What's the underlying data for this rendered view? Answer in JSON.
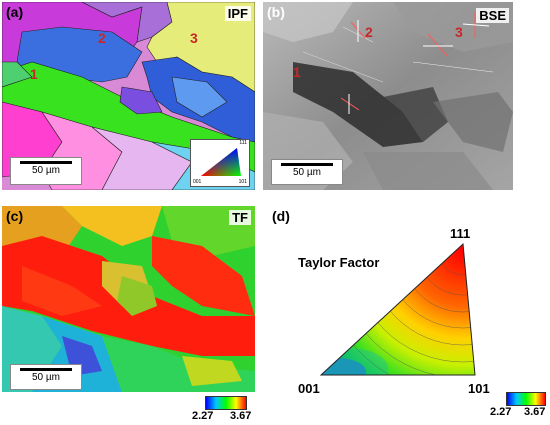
{
  "panels": {
    "a": {
      "tag": "(a)",
      "corner_label": "IPF",
      "scalebar": "50 µm",
      "grains": [
        "1",
        "2",
        "3"
      ],
      "legend_corners": [
        "111",
        "001",
        "101"
      ]
    },
    "b": {
      "tag": "(b)",
      "corner_label": "BSE",
      "scalebar": "50 µm",
      "grains": [
        "1",
        "2",
        "3"
      ]
    },
    "c": {
      "tag": "(c)",
      "corner_label": "TF",
      "scalebar": "50 µm",
      "colorbar": {
        "min": "2.27",
        "max": "3.67"
      }
    },
    "d": {
      "tag": "(d)",
      "title": "Taylor Factor",
      "corners": {
        "top": "111",
        "left": "001",
        "right": "101"
      },
      "colorbar": {
        "min": "2.27",
        "max": "3.67"
      }
    }
  },
  "colors": {
    "tf_low": "#0000ff",
    "tf_mid": "#00ff00",
    "tf_high": "#ff0000"
  }
}
